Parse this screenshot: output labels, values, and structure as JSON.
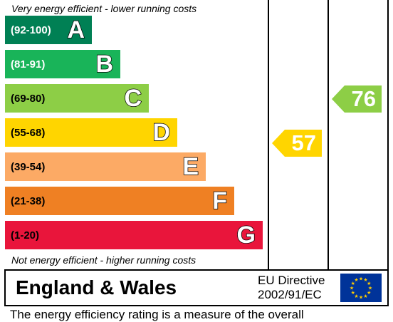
{
  "captions": {
    "top": "Very energy efficient - lower running costs",
    "bottom": "Not energy efficient - higher running costs"
  },
  "bands": [
    {
      "range": "(92-100)",
      "letter": "A",
      "color": "#008054"
    },
    {
      "range": "(81-91)",
      "letter": "B",
      "color": "#19b459"
    },
    {
      "range": "(69-80)",
      "letter": "C",
      "color": "#8dce46"
    },
    {
      "range": "(55-68)",
      "letter": "D",
      "color": "#ffd500"
    },
    {
      "range": "(39-54)",
      "letter": "E",
      "color": "#fcaa65"
    },
    {
      "range": "(21-38)",
      "letter": "F",
      "color": "#ef8023"
    },
    {
      "range": "(1-20)",
      "letter": "G",
      "color": "#e9153b"
    }
  ],
  "ratings": {
    "current": {
      "value": "57",
      "color": "#ffd500"
    },
    "potential": {
      "value": "76",
      "color": "#8dce46"
    }
  },
  "footer": {
    "region": "England & Wales",
    "directive_line1": "EU Directive",
    "directive_line2": "2002/91/EC"
  },
  "bottom_text": "The energy efficiency rating is a measure of the overall"
}
